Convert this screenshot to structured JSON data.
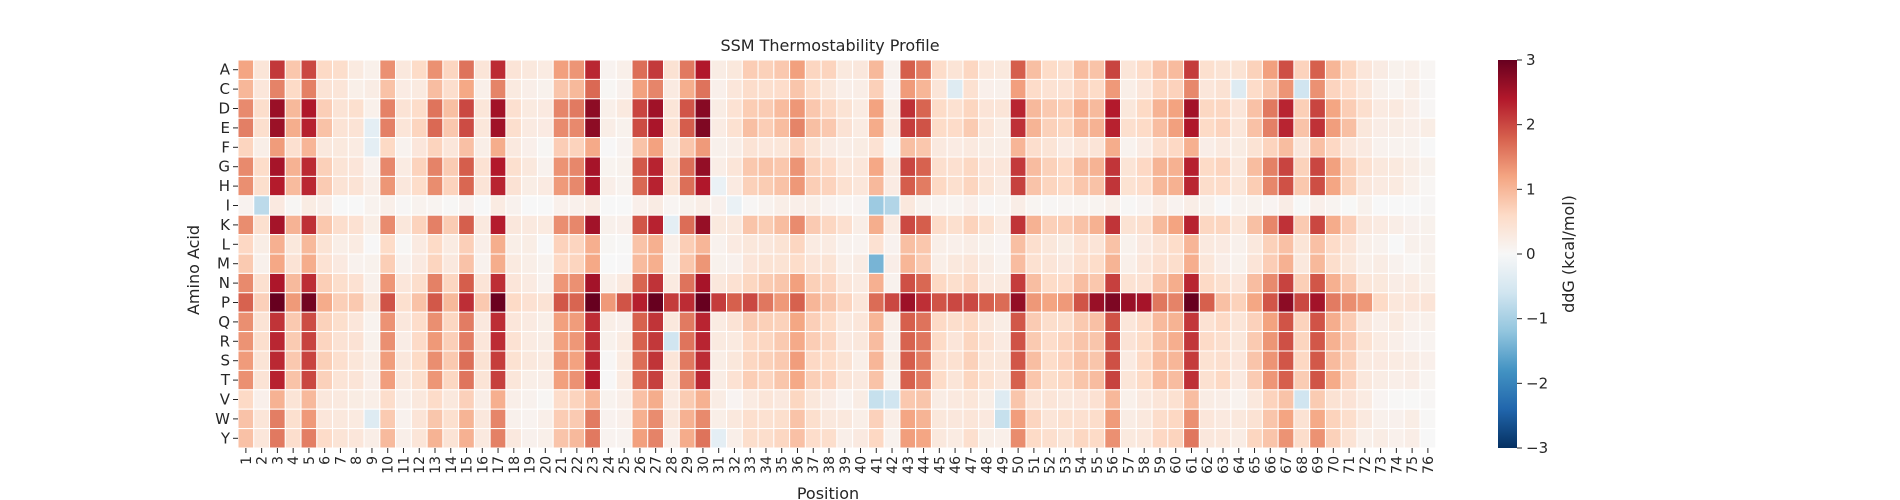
{
  "chart_data": {
    "type": "heatmap",
    "title": "SSM Thermostability Profile",
    "xlabel": "Position",
    "ylabel": "Amino Acid",
    "colorbar_label": "ddG (kcal/mol)",
    "colormap": "RdBu_r",
    "vmin": -3,
    "vmax": 3,
    "colorbar_ticks": [
      3,
      2,
      1,
      0,
      -1,
      -2,
      -3
    ],
    "colorbar_tick_labels": [
      "3",
      "2",
      "1",
      "0",
      "−1",
      "−2",
      "−3"
    ],
    "grid": "white cell borders",
    "rows": [
      "A",
      "C",
      "D",
      "E",
      "F",
      "G",
      "H",
      "I",
      "K",
      "L",
      "M",
      "N",
      "P",
      "Q",
      "R",
      "S",
      "T",
      "V",
      "W",
      "Y"
    ],
    "columns": [
      "1",
      "2",
      "3",
      "4",
      "5",
      "6",
      "7",
      "8",
      "9",
      "10",
      "11",
      "12",
      "13",
      "14",
      "15",
      "16",
      "17",
      "18",
      "19",
      "20",
      "21",
      "22",
      "23",
      "24",
      "25",
      "26",
      "27",
      "28",
      "29",
      "30",
      "31",
      "32",
      "33",
      "34",
      "35",
      "36",
      "37",
      "38",
      "39",
      "40",
      "41",
      "42",
      "43",
      "44",
      "45",
      "46",
      "47",
      "48",
      "49",
      "50",
      "51",
      "52",
      "53",
      "54",
      "55",
      "56",
      "57",
      "58",
      "59",
      "60",
      "61",
      "62",
      "63",
      "64",
      "65",
      "66",
      "67",
      "68",
      "69",
      "70",
      "71",
      "72",
      "73",
      "74",
      "75",
      "76"
    ],
    "column_scale": [
      1.5,
      0.5,
      2.6,
      1.0,
      2.4,
      0.8,
      0.5,
      0.4,
      0.2,
      1.5,
      0.3,
      0.6,
      1.6,
      0.8,
      1.9,
      0.4,
      2.5,
      0.4,
      0.3,
      0.2,
      1.5,
      1.5,
      2.7,
      0.1,
      0.2,
      2.0,
      2.5,
      0.4,
      1.8,
      2.7,
      0.3,
      0.4,
      0.8,
      0.8,
      0.9,
      1.4,
      0.8,
      0.7,
      0.4,
      0.3,
      1.1,
      0.2,
      2.1,
      1.8,
      0.6,
      0.5,
      0.7,
      0.4,
      0.3,
      2.2,
      1.0,
      0.7,
      0.7,
      1.0,
      1.0,
      2.3,
      0.4,
      0.6,
      1.0,
      1.2,
      2.5,
      0.6,
      0.6,
      0.4,
      0.9,
      1.5,
      2.2,
      0.8,
      2.1,
      1.2,
      0.8,
      0.4,
      0.3,
      0.2,
      0.2,
      0.1
    ],
    "row_scale": [
      0.85,
      0.6,
      1.0,
      1.0,
      0.45,
      0.95,
      0.9,
      0.1,
      0.95,
      0.4,
      0.45,
      0.9,
      1.15,
      0.85,
      0.85,
      0.85,
      0.85,
      0.4,
      0.55,
      0.6
    ],
    "proline_boost": [
      0,
      0.2,
      0,
      0.5,
      0,
      0.6,
      0.3,
      0.7,
      0,
      0.3,
      0,
      0.5,
      0,
      0.6,
      0,
      0.7,
      0,
      0.5,
      0.3,
      0,
      0,
      0.3,
      0,
      1.2,
      1.8,
      0,
      0,
      2.0,
      0,
      0,
      2.0,
      1.7,
      1.9,
      1.5,
      1.2,
      0,
      0.4,
      0,
      0,
      0.2,
      1.6,
      1.9,
      0,
      0,
      1.8,
      1.9,
      1.9,
      1.7,
      1.6,
      0,
      1.2,
      1.1,
      1.2,
      1.8,
      2.5,
      0,
      2.5,
      2.4,
      1.5,
      1.4,
      0,
      1.7,
      0.8,
      0.6,
      0.6,
      0,
      0,
      1.9,
      0,
      0.6,
      1.3,
      1.2,
      0.5,
      0.2,
      0.2,
      0.3
    ],
    "negative_cells": [
      {
        "row": "I",
        "column": "2",
        "value": -0.8
      },
      {
        "row": "I",
        "column": "41",
        "value": -1.1
      },
      {
        "row": "I",
        "column": "42",
        "value": -0.9
      },
      {
        "row": "M",
        "column": "41",
        "value": -1.4
      },
      {
        "row": "V",
        "column": "41",
        "value": -0.7
      },
      {
        "row": "V",
        "column": "42",
        "value": -0.6
      },
      {
        "row": "W",
        "column": "49",
        "value": -0.7
      },
      {
        "row": "C",
        "column": "68",
        "value": -0.6
      },
      {
        "row": "V",
        "column": "68",
        "value": -0.6
      },
      {
        "row": "R",
        "column": "28",
        "value": -0.6
      },
      {
        "row": "K",
        "column": "28",
        "value": -0.3
      },
      {
        "row": "Y",
        "column": "31",
        "value": -0.3
      },
      {
        "row": "H",
        "column": "31",
        "value": -0.2
      },
      {
        "row": "W",
        "column": "9",
        "value": -0.4
      },
      {
        "row": "E",
        "column": "9",
        "value": -0.3
      },
      {
        "row": "F",
        "column": "9",
        "value": -0.3
      },
      {
        "row": "C",
        "column": "46",
        "value": -0.4
      },
      {
        "row": "C",
        "column": "64",
        "value": -0.4
      },
      {
        "row": "V",
        "column": "49",
        "value": -0.4
      },
      {
        "row": "I",
        "column": "32",
        "value": -0.2
      }
    ]
  }
}
